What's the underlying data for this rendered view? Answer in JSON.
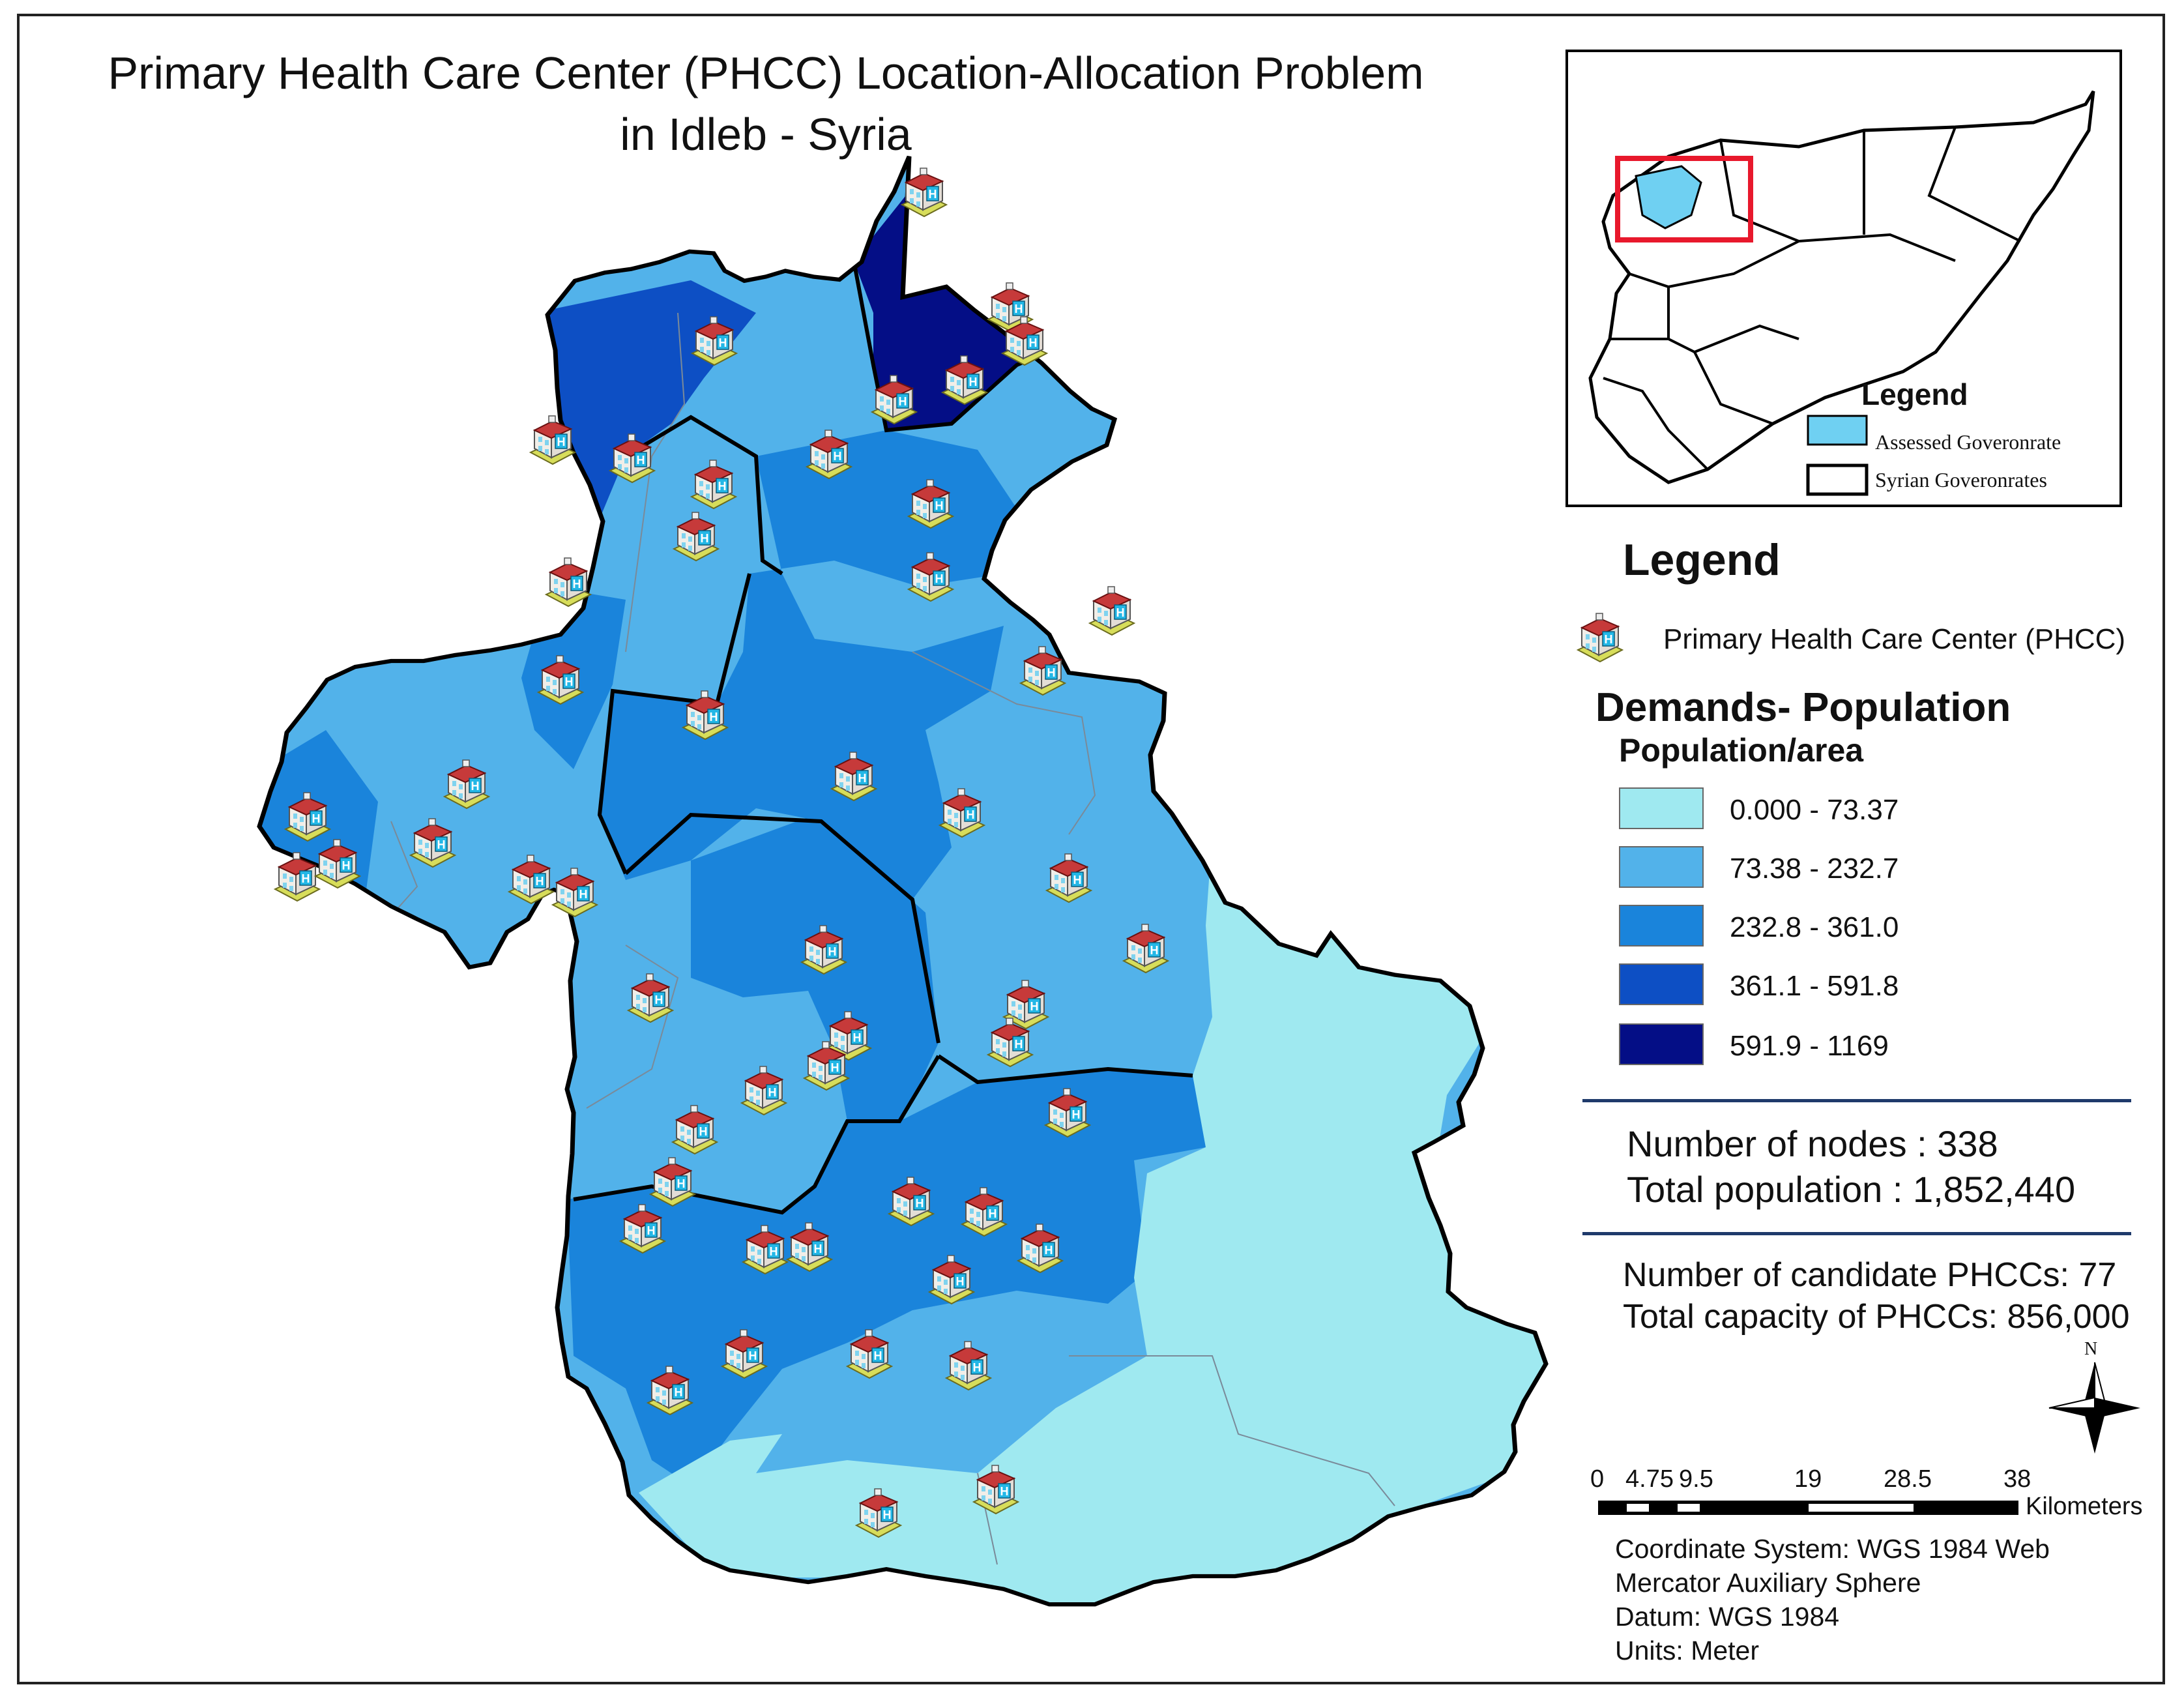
{
  "title": {
    "line1": "Primary Health Care Center (PHCC) Location-Allocation Problem",
    "line2": "in Idleb - Syria"
  },
  "inset_map": {
    "legend_title": "Legend",
    "items": [
      {
        "label": "Assessed Goveronrate",
        "color": "#6fd0f2"
      },
      {
        "label": "Syrian Goveronrates",
        "color": "#ffffff"
      }
    ],
    "highlight_color": "#e8182c"
  },
  "legend": {
    "title": "Legend",
    "phcc_label": "Primary Health Care Center (PHCC)",
    "demand_title": "Demands- Population",
    "demand_subtitle": "Population/area",
    "classes": [
      {
        "label": "0.000 - 73.37",
        "color": "#9fe9f0"
      },
      {
        "label": "73.38 - 232.7",
        "color": "#52b2ea"
      },
      {
        "label": "232.8 - 361.0",
        "color": "#1a84db"
      },
      {
        "label": "361.1 - 591.8",
        "color": "#0d4fc4"
      },
      {
        "label": "591.9 - 1169",
        "color": "#040e86"
      }
    ]
  },
  "stats": {
    "nodes": "Number of nodes : 338",
    "population": "Total population : 1,852,440",
    "candidates": "Number of candidate PHCCs: 77",
    "capacity": "Total capacity of PHCCs: 856,000"
  },
  "north_label": "N",
  "scale_bar": {
    "ticks": [
      "0",
      "4.75",
      "9.5",
      "19",
      "28.5",
      "38"
    ],
    "unit": "Kilometers"
  },
  "metadata": {
    "line1": "Coordinate System: WGS 1984 Web",
    "line2": "Mercator Auxiliary Sphere",
    "line3": "Datum: WGS 1984",
    "line4": "Units: Meter"
  }
}
